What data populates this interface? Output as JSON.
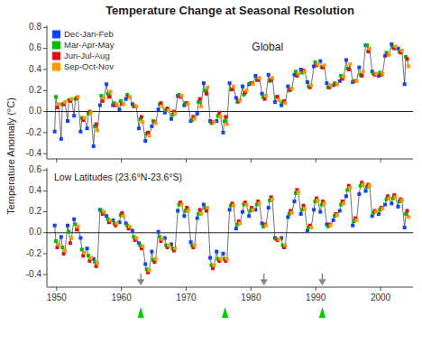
{
  "chart_data": [
    {
      "type": "line",
      "title": "Temperature Change at Seasonal Resolution",
      "y_label": "Temperature Anomaly (°C)",
      "annotations": [
        "Global"
      ],
      "legend": "upper left",
      "tick_labels": "y",
      "marker": "square",
      "line_style": "solid",
      "xlim": [
        1948.5,
        2005.0
      ],
      "ylim": [
        -0.45,
        0.82
      ],
      "xticks": [
        1950,
        1960,
        1970,
        1980,
        1990,
        2000
      ],
      "yticks": [
        -0.4,
        -0.2,
        {
          "value": 0,
          "label": "0.0"
        },
        0.2,
        0.4,
        0.6,
        0.8
      ],
      "x": [
        1950,
        1951,
        1952,
        1953,
        1954,
        1955,
        1956,
        1957,
        1958,
        1959,
        1960,
        1961,
        1962,
        1963,
        1964,
        1965,
        1966,
        1967,
        1968,
        1969,
        1970,
        1971,
        1972,
        1973,
        1974,
        1975,
        1976,
        1977,
        1978,
        1979,
        1980,
        1981,
        1982,
        1983,
        1984,
        1985,
        1986,
        1987,
        1988,
        1989,
        1990,
        1991,
        1992,
        1993,
        1994,
        1995,
        1996,
        1997,
        1998,
        1999,
        2000,
        2001,
        2002,
        2003,
        2004
      ],
      "series": [
        {
          "name": "Dec-Jan-Feb",
          "color": "#1144ee",
          "values": [
            -0.19,
            -0.26,
            -0.09,
            -0.04,
            -0.19,
            -0.16,
            -0.33,
            0.06,
            0.26,
            0.06,
            0.02,
            0.12,
            0.07,
            -0.16,
            -0.28,
            -0.14,
            0.02,
            -0.01,
            -0.07,
            0.15,
            0.06,
            -0.09,
            -0.02,
            0.27,
            -0.09,
            -0.09,
            -0.2,
            0.27,
            0.13,
            0.24,
            0.26,
            0.34,
            0.17,
            0.35,
            0.09,
            0.06,
            0.24,
            0.35,
            0.4,
            0.28,
            0.43,
            0.48,
            0.27,
            0.25,
            0.29,
            0.49,
            0.28,
            0.42,
            0.63,
            0.38,
            0.34,
            0.53,
            0.64,
            0.6,
            0.26
          ]
        },
        {
          "name": "Mar-Apr-May",
          "color": "#00bb00",
          "values": [
            0.14,
            0.07,
            0.11,
            0.12,
            -0.06,
            -0.02,
            -0.14,
            0.15,
            0.17,
            0.08,
            0.1,
            0.16,
            0.05,
            -0.07,
            -0.21,
            -0.09,
            0.07,
            0.02,
            -0.03,
            0.16,
            0.08,
            -0.08,
            0.09,
            0.2,
            -0.11,
            -0.04,
            -0.09,
            0.21,
            0.09,
            0.16,
            0.27,
            0.3,
            0.14,
            0.29,
            0.14,
            0.09,
            0.2,
            0.38,
            0.37,
            0.24,
            0.47,
            0.42,
            0.23,
            0.27,
            0.34,
            0.41,
            0.29,
            0.35,
            0.63,
            0.36,
            0.37,
            0.56,
            0.61,
            0.57,
            0.52
          ]
        },
        {
          "name": "Jun-Jul-Aug",
          "color": "#dd1111",
          "values": [
            0.04,
            0.07,
            0.1,
            0.13,
            -0.08,
            0.0,
            -0.12,
            0.1,
            0.14,
            0.06,
            0.07,
            0.14,
            0.05,
            -0.05,
            -0.2,
            -0.1,
            0.08,
            0.03,
            0.0,
            0.14,
            0.08,
            -0.05,
            0.12,
            0.17,
            -0.1,
            -0.01,
            -0.05,
            0.21,
            0.1,
            0.18,
            0.27,
            0.3,
            0.12,
            0.3,
            0.14,
            0.1,
            0.21,
            0.34,
            0.39,
            0.23,
            0.44,
            0.42,
            0.23,
            0.26,
            0.31,
            0.4,
            0.29,
            0.34,
            0.57,
            0.35,
            0.35,
            0.54,
            0.6,
            0.56,
            0.5
          ]
        },
        {
          "name": "Sep-Oct-Nov",
          "color": "#ff9900",
          "values": [
            0.07,
            0.09,
            0.12,
            0.14,
            -0.06,
            -0.01,
            -0.18,
            0.13,
            0.19,
            0.07,
            0.07,
            0.14,
            0.05,
            -0.1,
            -0.23,
            -0.11,
            0.05,
            0.01,
            -0.02,
            0.15,
            0.07,
            -0.07,
            0.05,
            0.23,
            -0.1,
            -0.05,
            -0.12,
            0.24,
            0.11,
            0.2,
            0.26,
            0.32,
            0.15,
            0.32,
            0.11,
            0.08,
            0.22,
            0.36,
            0.38,
            0.25,
            0.45,
            0.44,
            0.25,
            0.26,
            0.33,
            0.45,
            0.29,
            0.38,
            0.6,
            0.36,
            0.36,
            0.54,
            0.62,
            0.58,
            0.43
          ]
        }
      ]
    },
    {
      "type": "line",
      "annotations": [
        "Low Latitudes (23.6°N-23.6°S)"
      ],
      "marker": "square",
      "line_style": "solid",
      "xlim": [
        1948.5,
        2005.0
      ],
      "ylim": [
        -0.52,
        0.62
      ],
      "xticks": [
        1950,
        1960,
        1970,
        1980,
        1990,
        2000
      ],
      "yticks": [
        -0.4,
        -0.2,
        {
          "value": 0,
          "label": "0.0"
        },
        0.2,
        0.4,
        0.6
      ],
      "x": [
        1950,
        1951,
        1952,
        1953,
        1954,
        1955,
        1956,
        1957,
        1958,
        1959,
        1960,
        1961,
        1962,
        1963,
        1964,
        1965,
        1966,
        1967,
        1968,
        1969,
        1970,
        1971,
        1972,
        1973,
        1974,
        1975,
        1976,
        1977,
        1978,
        1979,
        1980,
        1981,
        1982,
        1983,
        1984,
        1985,
        1986,
        1987,
        1988,
        1989,
        1990,
        1991,
        1992,
        1993,
        1994,
        1995,
        1996,
        1997,
        1998,
        1999,
        2000,
        2001,
        2002,
        2003,
        2004
      ],
      "series": [
        {
          "name": "Dec-Jan-Feb",
          "color": "#1144ee",
          "values": [
            0.07,
            -0.04,
            0.07,
            0.13,
            -0.05,
            -0.15,
            -0.25,
            0.22,
            0.16,
            0.12,
            0.1,
            0.09,
            0.02,
            -0.1,
            -0.3,
            -0.18,
            0.01,
            -0.05,
            -0.11,
            0.21,
            0.16,
            -0.09,
            0.14,
            0.27,
            -0.24,
            -0.18,
            -0.2,
            0.22,
            0.04,
            0.2,
            0.16,
            0.22,
            0.09,
            0.24,
            -0.05,
            -0.05,
            0.15,
            0.3,
            0.18,
            0.02,
            0.22,
            0.2,
            0.08,
            0.12,
            0.21,
            0.35,
            0.07,
            0.37,
            0.4,
            0.16,
            0.18,
            0.27,
            0.28,
            0.25,
            0.05
          ]
        },
        {
          "name": "Mar-Apr-May",
          "color": "#00bb00",
          "values": [
            -0.08,
            -0.14,
            0.01,
            0.08,
            -0.16,
            -0.22,
            -0.28,
            0.21,
            0.13,
            0.09,
            0.17,
            0.07,
            -0.04,
            -0.12,
            -0.35,
            -0.26,
            -0.04,
            -0.12,
            -0.15,
            0.27,
            0.21,
            -0.12,
            0.18,
            0.24,
            -0.31,
            -0.25,
            -0.25,
            0.26,
            0.08,
            0.27,
            0.21,
            0.27,
            0.06,
            0.31,
            -0.06,
            -0.12,
            0.18,
            0.38,
            0.22,
            0.05,
            0.3,
            0.27,
            0.06,
            0.16,
            0.27,
            0.41,
            0.11,
            0.45,
            0.44,
            0.19,
            0.22,
            0.32,
            0.33,
            0.3,
            0.18
          ]
        },
        {
          "name": "Jun-Jul-Aug",
          "color": "#dd1111",
          "values": [
            -0.14,
            -0.2,
            -0.1,
            0.03,
            -0.22,
            -0.27,
            -0.32,
            0.18,
            0.1,
            0.07,
            0.19,
            0.04,
            -0.07,
            -0.15,
            -0.38,
            -0.28,
            -0.08,
            -0.14,
            -0.17,
            0.29,
            0.24,
            -0.14,
            0.22,
            0.21,
            -0.34,
            -0.27,
            -0.27,
            0.28,
            0.11,
            0.29,
            0.24,
            0.3,
            0.08,
            0.34,
            -0.07,
            -0.14,
            0.21,
            0.41,
            0.26,
            0.07,
            0.33,
            0.3,
            0.08,
            0.18,
            0.3,
            0.45,
            0.14,
            0.48,
            0.46,
            0.21,
            0.24,
            0.35,
            0.36,
            0.32,
            0.21
          ]
        },
        {
          "name": "Sep-Oct-Nov",
          "color": "#ff9900",
          "values": [
            -0.11,
            -0.17,
            -0.05,
            0.06,
            -0.19,
            -0.24,
            -0.29,
            0.2,
            0.12,
            0.09,
            0.16,
            0.06,
            -0.05,
            -0.13,
            -0.36,
            -0.25,
            -0.06,
            -0.12,
            -0.15,
            0.27,
            0.21,
            -0.12,
            0.18,
            0.24,
            -0.31,
            -0.25,
            -0.25,
            0.26,
            0.09,
            0.27,
            0.22,
            0.28,
            0.07,
            0.32,
            -0.06,
            -0.12,
            0.19,
            0.39,
            0.23,
            0.05,
            0.31,
            0.28,
            0.07,
            0.17,
            0.28,
            0.43,
            0.12,
            0.46,
            0.45,
            0.2,
            0.23,
            0.33,
            0.34,
            0.31,
            0.15
          ]
        }
      ],
      "volcanic_years": [
        1963,
        1982,
        1991
      ],
      "el_nino_years": [
        1963,
        1976,
        1991
      ]
    }
  ]
}
